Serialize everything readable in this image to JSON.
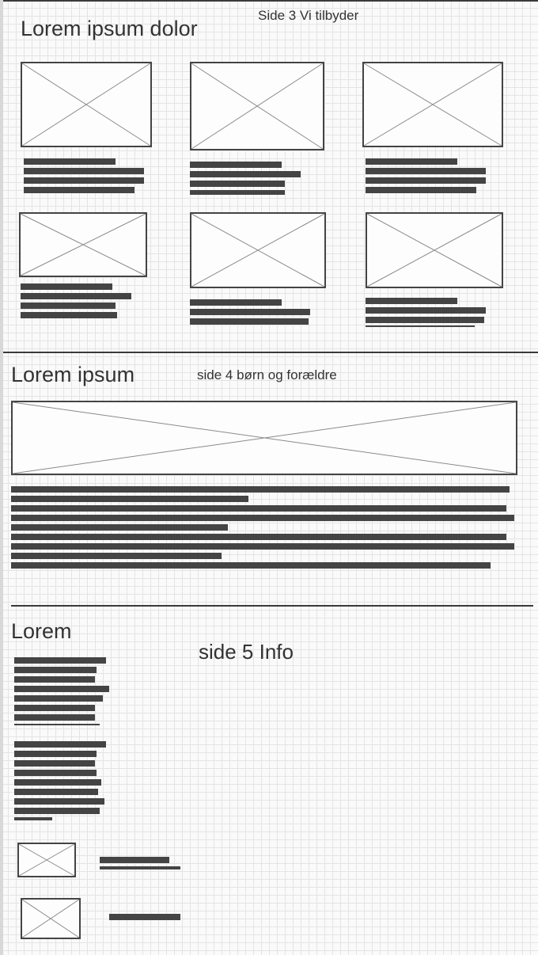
{
  "section_3": {
    "page_label": "Side 3 Vi tilbyder",
    "heading": "Lorem ipsum dolor"
  },
  "section_4": {
    "heading": "Lorem ipsum",
    "page_label": "side 4 børn og forældre"
  },
  "section_5": {
    "heading": "Lorem",
    "page_label": "side 5 Info"
  },
  "icons": {
    "image_placeholder": "image-placeholder-icon",
    "text_line": "text-line-placeholder"
  },
  "colors": {
    "line": "#444444",
    "grid": "#e4e4e4",
    "background": "#fafafa"
  }
}
